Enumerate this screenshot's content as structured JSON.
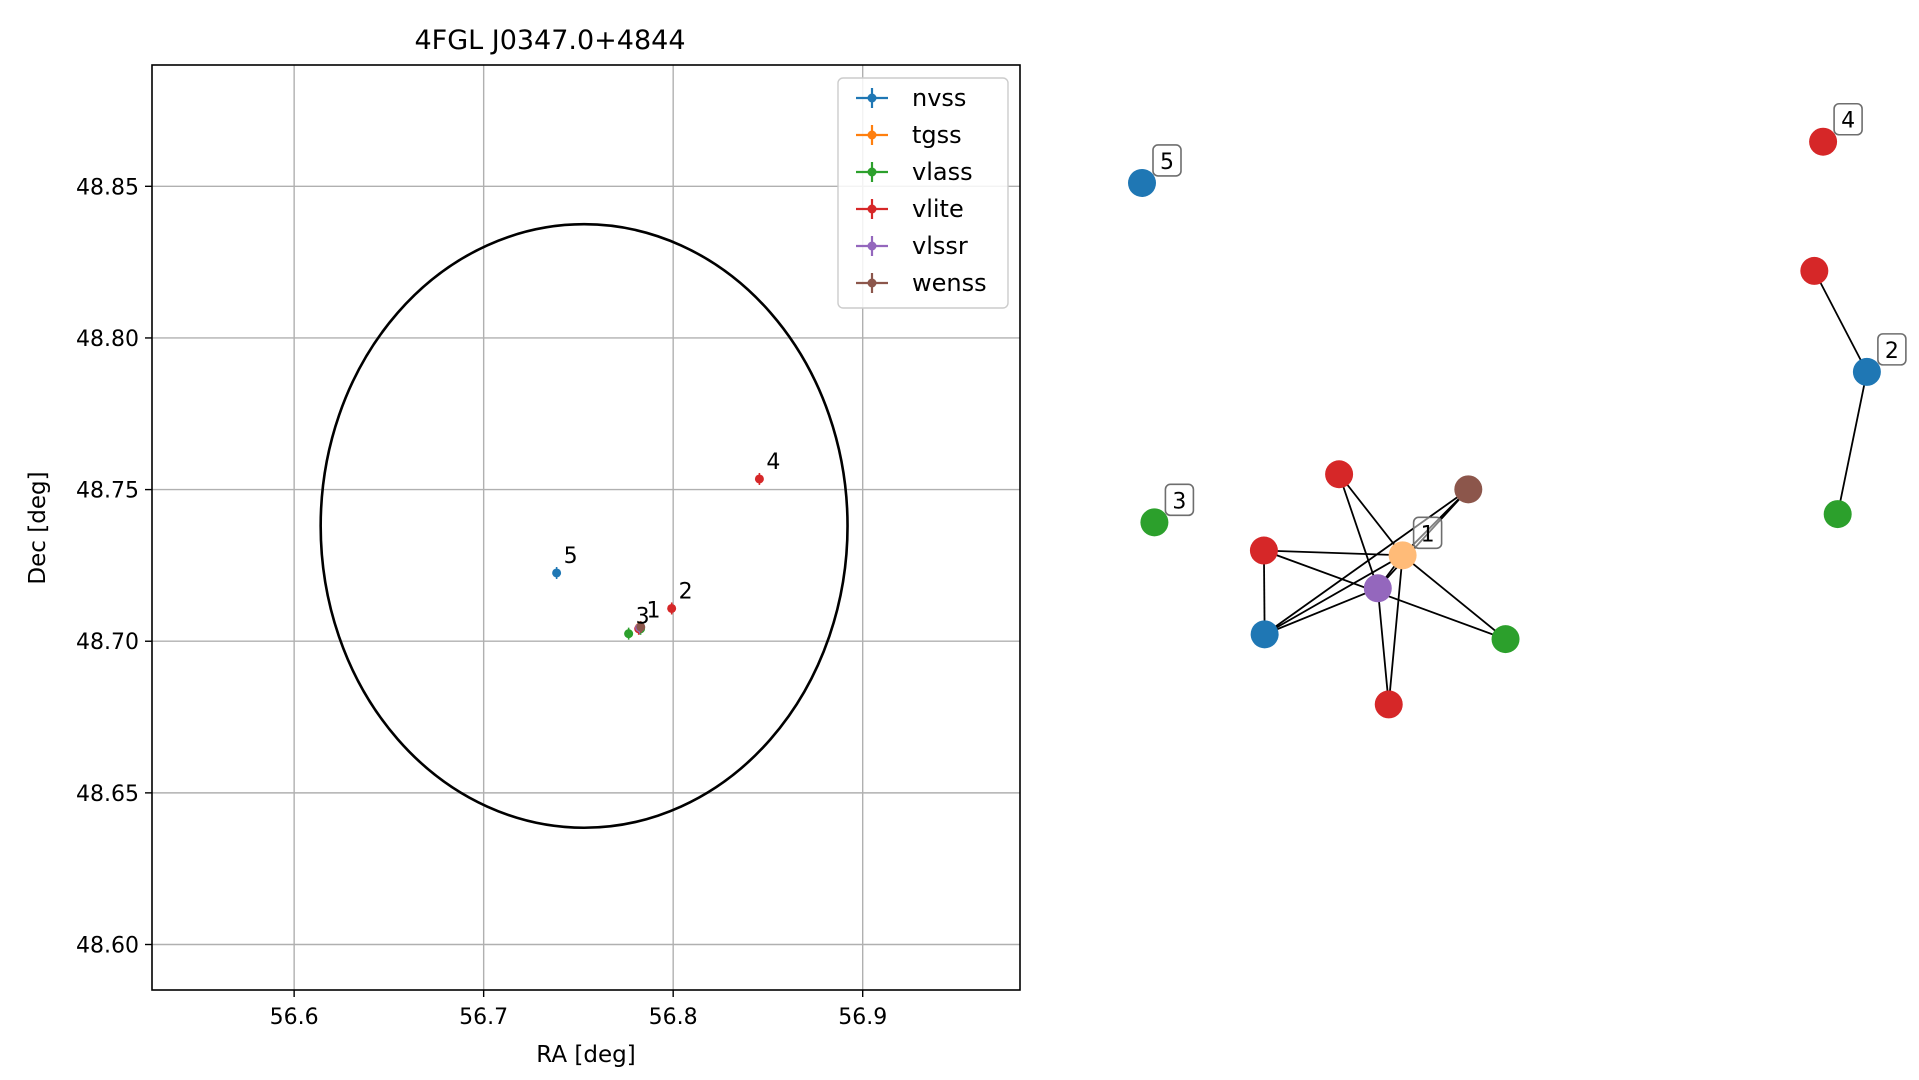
{
  "chart_data": [
    {
      "type": "scatter",
      "title": "4FGL J0347.0+4844",
      "xlabel": "RA [deg]",
      "ylabel": "Dec [deg]",
      "xlim": [
        56.525,
        56.983
      ],
      "ylim": [
        48.585,
        48.89
      ],
      "xticks": [
        56.6,
        56.7,
        56.8,
        56.9
      ],
      "xtick_labels": [
        "56.6",
        "56.7",
        "56.8",
        "56.9"
      ],
      "yticks": [
        48.6,
        48.65,
        48.7,
        48.75,
        48.8,
        48.85
      ],
      "ytick_labels": [
        "48.60",
        "48.65",
        "48.70",
        "48.75",
        "48.80",
        "48.85"
      ],
      "grid": true,
      "legend_position": "top-right",
      "ellipse": {
        "center": [
          56.753,
          48.738
        ],
        "half_width": 0.139,
        "half_height": 0.0995
      },
      "series": [
        {
          "name": "nvss",
          "color": "#1f77b4",
          "points": [
            [
              56.7385,
              48.7225
            ],
            [
              56.7825,
              48.7043
            ]
          ]
        },
        {
          "name": "tgss",
          "color": "#ff7f0e",
          "points": [
            [
              56.7822,
              48.7046
            ]
          ]
        },
        {
          "name": "vlass",
          "color": "#2ca02c",
          "points": [
            [
              56.7765,
              48.7025
            ],
            [
              56.7828,
              48.7041
            ]
          ]
        },
        {
          "name": "vlite",
          "color": "#d62728",
          "points": [
            [
              56.7992,
              48.7108
            ],
            [
              56.8455,
              48.7535
            ],
            [
              56.7818,
              48.7041
            ]
          ]
        },
        {
          "name": "vlssr",
          "color": "#9467bd",
          "points": [
            [
              56.7823,
              48.7045
            ]
          ]
        },
        {
          "name": "wenss",
          "color": "#8c564b",
          "points": [
            [
              56.7829,
              48.7047
            ]
          ]
        }
      ],
      "annotations": [
        {
          "text": "5",
          "x": 56.7385,
          "y": 48.7225
        },
        {
          "text": "1",
          "x": 56.7822,
          "y": 48.7045
        },
        {
          "text": "3",
          "x": 56.7765,
          "y": 48.7025
        },
        {
          "text": "2",
          "x": 56.7992,
          "y": 48.7108
        },
        {
          "text": "4",
          "x": 56.8455,
          "y": 48.7535
        }
      ]
    },
    {
      "type": "network",
      "nodes": [
        {
          "id": "n5",
          "color": "#1f77b4",
          "label": "5",
          "x": 0.0,
          "y": 0.92
        },
        {
          "id": "n3",
          "color": "#2ca02c",
          "label": "3",
          "x": 0.017,
          "y": 0.426
        },
        {
          "id": "n4",
          "color": "#d62728",
          "label": "4",
          "x": 0.933,
          "y": 0.98
        },
        {
          "id": "n2",
          "color": "#1f77b4",
          "label": "2",
          "x": 0.993,
          "y": 0.645
        },
        {
          "id": "vr",
          "color": "#d62728",
          "label": "",
          "x": 0.921,
          "y": 0.792
        },
        {
          "id": "vg",
          "color": "#2ca02c",
          "label": "",
          "x": 0.953,
          "y": 0.438
        },
        {
          "id": "n1",
          "color": "#ffbb78",
          "label": "1",
          "x": 0.357,
          "y": 0.378
        },
        {
          "id": "a",
          "color": "#d62728",
          "label": "",
          "x": 0.27,
          "y": 0.496
        },
        {
          "id": "b",
          "color": "#8c564b",
          "label": "",
          "x": 0.447,
          "y": 0.474
        },
        {
          "id": "c",
          "color": "#d62728",
          "label": "",
          "x": 0.167,
          "y": 0.385
        },
        {
          "id": "d",
          "color": "#9467bd",
          "label": "",
          "x": 0.323,
          "y": 0.33
        },
        {
          "id": "e",
          "color": "#1f77b4",
          "label": "",
          "x": 0.168,
          "y": 0.263
        },
        {
          "id": "f",
          "color": "#2ca02c",
          "label": "",
          "x": 0.498,
          "y": 0.256
        },
        {
          "id": "g",
          "color": "#d62728",
          "label": "",
          "x": 0.338,
          "y": 0.161
        }
      ],
      "edges": [
        [
          "vr",
          "n2"
        ],
        [
          "n2",
          "vg"
        ],
        [
          "n1",
          "a"
        ],
        [
          "n1",
          "b"
        ],
        [
          "n1",
          "c"
        ],
        [
          "n1",
          "e"
        ],
        [
          "n1",
          "f"
        ],
        [
          "n1",
          "g"
        ],
        [
          "n1",
          "d"
        ],
        [
          "a",
          "d"
        ],
        [
          "b",
          "d"
        ],
        [
          "b",
          "e"
        ],
        [
          "c",
          "e"
        ],
        [
          "c",
          "f"
        ],
        [
          "d",
          "e"
        ],
        [
          "d",
          "g"
        ]
      ]
    }
  ]
}
